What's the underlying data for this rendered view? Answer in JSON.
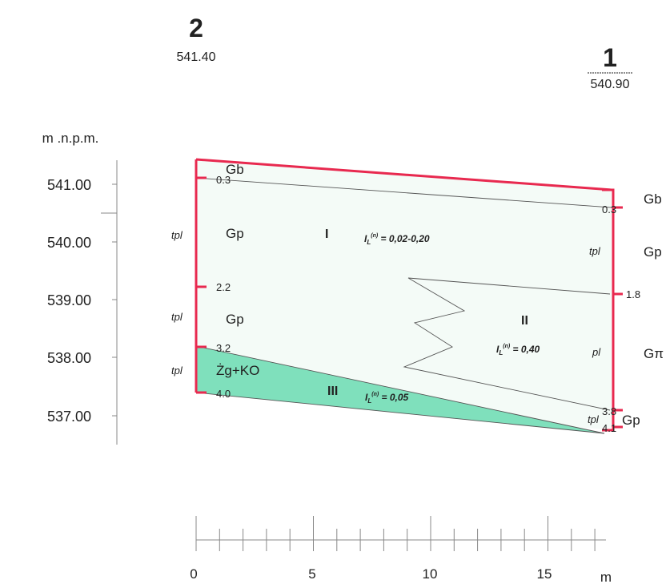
{
  "boreholes": [
    {
      "number": "2",
      "elevation": "541.40",
      "layers": [
        {
          "soil": "Gb",
          "depth": "0.3"
        },
        {
          "soil": "Gp",
          "state": "tpl",
          "depth": "2.2"
        },
        {
          "soil": "Gp",
          "state": "tpl",
          "depth": "3.2"
        },
        {
          "soil": "Żg+KO",
          "state": "tpl",
          "depth": "4.0"
        }
      ]
    },
    {
      "number": "1",
      "elevation": "540.90",
      "layers": [
        {
          "soil": "Gb",
          "depth": "0.3"
        },
        {
          "soil": "Gp",
          "state": "tpl",
          "depth": "1.8"
        },
        {
          "soil": "Gπ",
          "state": "pl",
          "depth": "3.8"
        },
        {
          "soil": "Gp",
          "state": "tpl",
          "depth": "4.1"
        }
      ]
    }
  ],
  "elevation_axis": {
    "title": "m .n.p.m.",
    "levels": [
      "541.00",
      "540.00",
      "539.00",
      "538.00",
      "537.00"
    ]
  },
  "distance_axis": {
    "ticks": [
      "0",
      "5",
      "10",
      "15"
    ],
    "unit": "m"
  },
  "zones": [
    {
      "label": "I",
      "symbol": "I",
      "sub": "L",
      "sup": "(n)",
      "value": " = 0,02-0,20"
    },
    {
      "label": "II",
      "symbol": "I",
      "sub": "L",
      "sup": "(n)",
      "value": " = 0,40"
    },
    {
      "label": "III",
      "symbol": "I",
      "sub": "L",
      "sup": "(n)",
      "value": " = 0,05"
    }
  ]
}
